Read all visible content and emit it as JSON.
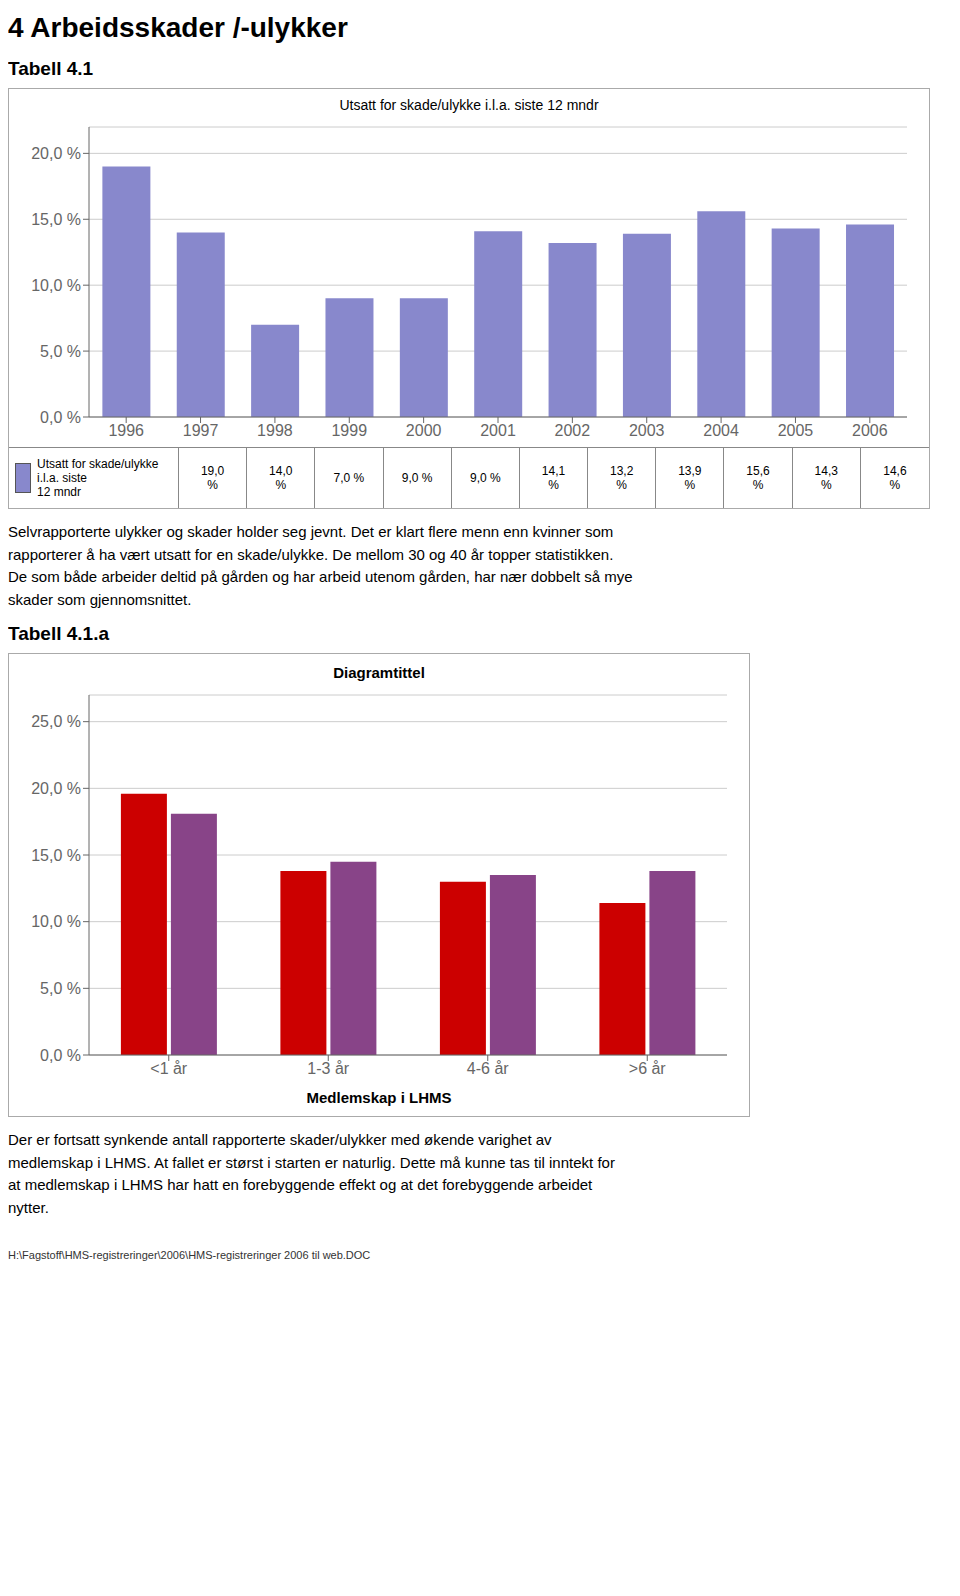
{
  "chart_data": [
    {
      "type": "bar",
      "title": "Utsatt for skade/ulykke i.l.a. siste 12 mndr",
      "subtitle": "Tabell 4.1",
      "annotations": [
        "4 Arbeidsskader /-ulykker",
        "Selvrapporterte ulykker og skader holder seg jevnt. Det er klart flere menn enn kvinner som\nrapporterer å ha vært utsatt for en skade/ulykke. De mellom 30 og 40 år topper statistikken.\nDe som både arbeider deltid på gården og har arbeid utenom gården, har nær dobbelt så mye\nskader som gjennomsnittet."
      ],
      "categories": [
        "1996",
        "1997",
        "1998",
        "1999",
        "2000",
        "2001",
        "2002",
        "2003",
        "2004",
        "2005",
        "2006"
      ],
      "series": [
        {
          "name": "Utsatt for skade/ulykke i.l.a. siste\n12 mndr",
          "color": "#8888cc",
          "values": [
            19.0,
            14.0,
            7.0,
            9.0,
            9.0,
            14.1,
            13.2,
            13.9,
            15.6,
            14.3,
            14.6
          ],
          "value_labels": [
            "19,0\n%",
            "14,0\n%",
            "7,0 %",
            "9,0 %",
            "9,0 %",
            "14,1\n%",
            "13,2\n%",
            "13,9\n%",
            "15,6\n%",
            "14,3\n%",
            "14,6\n%"
          ]
        }
      ],
      "ylim": [
        0,
        22
      ],
      "yticks": [
        {
          "value": 0,
          "label": "0,0 %"
        },
        {
          "value": 5,
          "label": "5,0 %"
        },
        {
          "value": 10,
          "label": "10,0 %"
        },
        {
          "value": 15,
          "label": "15,0 %"
        },
        {
          "value": 20,
          "label": "20,0 %"
        }
      ],
      "grid": true
    },
    {
      "type": "bar",
      "title": "Diagramtittel",
      "subtitle": "Tabell 4.1.a",
      "xlabel": "Medlemskap i LHMS",
      "annotations": [
        "Der er fortsatt synkende antall rapporterte skader/ulykker med økende varighet av\nmedlemskap i LHMS. At fallet er størst i starten er naturlig. Dette må kunne tas til inntekt for\nat medlemskap i LHMS har hatt en forebyggende effekt og at det forebyggende arbeidet\nnytter.",
        "H:\\Fagstoff\\HMS-registreringer\\2006\\HMS-registreringer 2006 til web.DOC"
      ],
      "categories": [
        "<1 år",
        "1-3 år",
        "4-6 år",
        ">6 år"
      ],
      "series": [
        {
          "color": "#cc0000",
          "values": [
            19.6,
            13.8,
            13.0,
            11.4
          ]
        },
        {
          "color": "#884488",
          "values": [
            18.1,
            14.5,
            13.5,
            13.8
          ]
        }
      ],
      "ylim": [
        0,
        27
      ],
      "yticks": [
        {
          "value": 0,
          "label": "0,0 %"
        },
        {
          "value": 5,
          "label": "5,0 %"
        },
        {
          "value": 10,
          "label": "10,0 %"
        },
        {
          "value": 15,
          "label": "15,0 %"
        },
        {
          "value": 20,
          "label": "20,0 %"
        },
        {
          "value": 25,
          "label": "25,0 %"
        }
      ],
      "grid": true
    }
  ]
}
